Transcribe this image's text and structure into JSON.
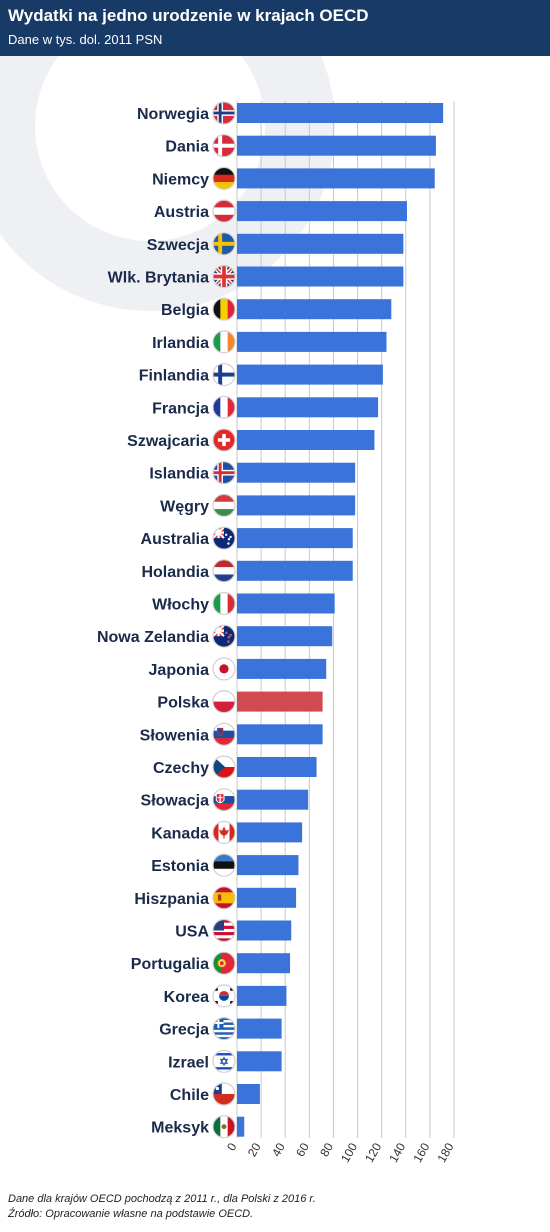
{
  "header": {
    "title": "Wydatki na jedno urodzenie w krajach OECD",
    "subtitle": "Dane w tys. dol. 2011 PSN"
  },
  "footnotes": {
    "line1": "Dane dla krajów OECD pochodzą z 2011 r., dla Polski z 2016 r.",
    "line2": "Źródło: Opracowanie własne na podstawie OECD."
  },
  "colors": {
    "header_bg": "#173a66",
    "bar": "#3a73d9",
    "bar_highlight": "#d14a4f",
    "grid": "#c8c8c8",
    "label": "#1a2a4a"
  },
  "chart_data": {
    "type": "bar",
    "orientation": "horizontal",
    "title": "Wydatki na jedno urodzenie w krajach OECD",
    "subtitle": "Dane w tys. dol. 2011 PSN",
    "xlabel": "",
    "ylabel": "",
    "xlim": [
      0,
      180
    ],
    "ticks": [
      0,
      20,
      40,
      60,
      80,
      100,
      120,
      140,
      160,
      180
    ],
    "grid": true,
    "highlight": "Polska",
    "categories": [
      "Norwegia",
      "Dania",
      "Niemcy",
      "Austria",
      "Szwecja",
      "Wlk. Brytania",
      "Belgia",
      "Irlandia",
      "Finlandia",
      "Francja",
      "Szwajcaria",
      "Islandia",
      "Węgry",
      "Australia",
      "Holandia",
      "Włochy",
      "Nowa Zelandia",
      "Japonia",
      "Polska",
      "Słowenia",
      "Czechy",
      "Słowacja",
      "Kanada",
      "Estonia",
      "Hiszpania",
      "USA",
      "Portugalia",
      "Korea",
      "Grecja",
      "Izrael",
      "Chile",
      "Meksyk"
    ],
    "values": [
      171,
      165,
      164,
      141,
      138,
      138,
      128,
      124,
      121,
      117,
      114,
      98,
      98,
      96,
      96,
      81,
      79,
      74,
      71,
      71,
      66,
      59,
      54,
      51,
      49,
      45,
      44,
      41,
      37,
      37,
      19,
      6
    ],
    "flags": [
      "flag-norway-icon",
      "flag-denmark-icon",
      "flag-germany-icon",
      "flag-austria-icon",
      "flag-sweden-icon",
      "flag-uk-icon",
      "flag-belgium-icon",
      "flag-ireland-icon",
      "flag-finland-icon",
      "flag-france-icon",
      "flag-switzerland-icon",
      "flag-iceland-icon",
      "flag-hungary-icon",
      "flag-australia-icon",
      "flag-netherlands-icon",
      "flag-italy-icon",
      "flag-new-zealand-icon",
      "flag-japan-icon",
      "flag-poland-icon",
      "flag-slovenia-icon",
      "flag-czechia-icon",
      "flag-slovakia-icon",
      "flag-canada-icon",
      "flag-estonia-icon",
      "flag-spain-icon",
      "flag-usa-icon",
      "flag-portugal-icon",
      "flag-korea-icon",
      "flag-greece-icon",
      "flag-israel-icon",
      "flag-chile-icon",
      "flag-mexico-icon"
    ]
  }
}
